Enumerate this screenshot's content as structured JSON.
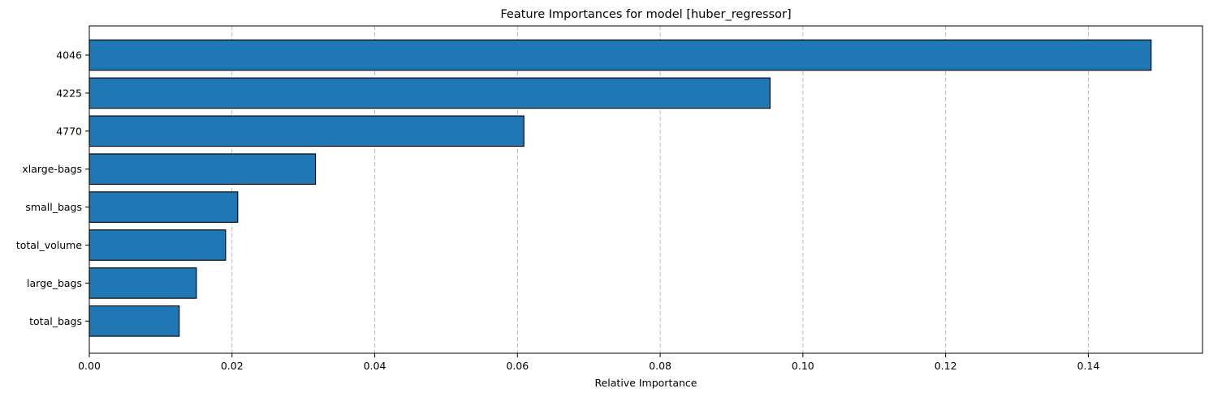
{
  "chart_data": {
    "type": "bar",
    "orientation": "horizontal",
    "title": "Feature Importances for model [huber_regressor]",
    "xlabel": "Relative Importance",
    "ylabel": "",
    "categories": [
      "4046",
      "4225",
      "4770",
      "xlarge-bags",
      "small_bags",
      "total_volume",
      "large_bags",
      "total_bags"
    ],
    "values": [
      0.1488,
      0.0954,
      0.0609,
      0.0317,
      0.0208,
      0.0191,
      0.015,
      0.0126
    ],
    "xlim": [
      0.0,
      0.156
    ],
    "xticks": [
      0.0,
      0.02,
      0.04,
      0.06,
      0.08,
      0.1,
      0.12,
      0.14
    ],
    "xtick_labels": [
      "0.00",
      "0.02",
      "0.04",
      "0.06",
      "0.08",
      "0.10",
      "0.12",
      "0.14"
    ],
    "grid": "x-dashed",
    "bar_color": "#1f77b4",
    "edge_color": "#000000"
  }
}
